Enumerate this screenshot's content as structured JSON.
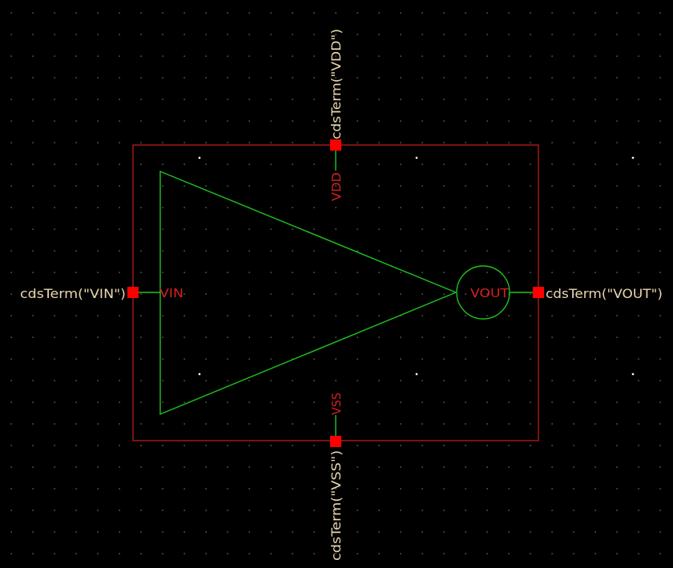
{
  "colors": {
    "background": "#000000",
    "grid_dot": "#9a9a9a",
    "grid_dot_major": "#ffffff",
    "box_outline": "#cc1f1f",
    "wire": "#1fc21f",
    "pin_square": "#ff0000",
    "pin_label": "#d62020",
    "term_label": "#e8d6b0"
  },
  "symbol": {
    "shape": "triangle-buffer",
    "output_bubble": true,
    "pins": {
      "vdd": {
        "name": "VDD",
        "term_label": "cdsTerm(\"VDD\")"
      },
      "vss": {
        "name": "VSS",
        "term_label": "cdsTerm(\"VSS\")"
      },
      "vin": {
        "name": "VIN",
        "term_label": "cdsTerm(\"VIN\")"
      },
      "vout": {
        "name": "VOUT",
        "term_label": "cdsTerm(\"VOUT\")"
      }
    }
  }
}
